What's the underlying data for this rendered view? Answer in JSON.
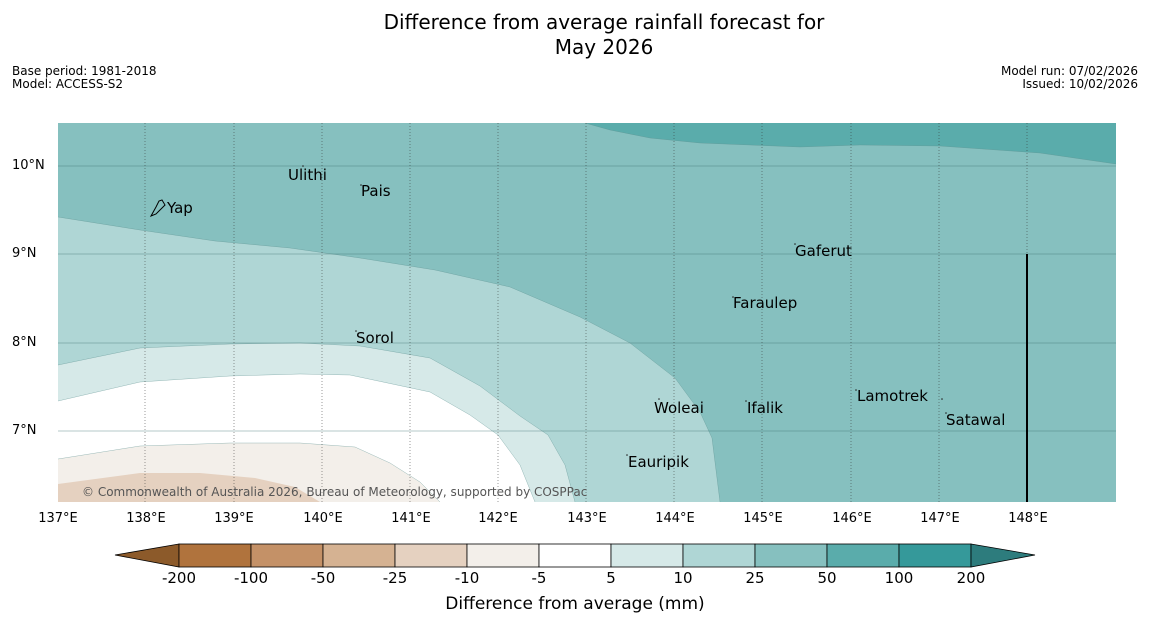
{
  "title_line1": "Difference from average rainfall forecast for",
  "title_line2": "May 2026",
  "meta_left": {
    "base_period": "Base period: 1981-2018",
    "model": "Model: ACCESS-S2"
  },
  "meta_right": {
    "model_run": "Model run: 07/02/2026",
    "issued": "Issued: 10/02/2026"
  },
  "lat_labels": [
    "10°N",
    "9°N",
    "8°N",
    "7°N"
  ],
  "lon_labels": [
    "137°E",
    "138°E",
    "139°E",
    "140°E",
    "141°E",
    "142°E",
    "143°E",
    "144°E",
    "145°E",
    "146°E",
    "147°E",
    "148°E"
  ],
  "places": {
    "ulithi": "Ulithi",
    "pais": "Pais",
    "yap": "Yap",
    "gaferut": "Gaferut",
    "faraulep": "Faraulep",
    "sorol": "Sorol",
    "lamotrek": "Lamotrek",
    "woleai": "Woleai",
    "ifalik": "Ifalik",
    "satawal": "Satawal",
    "eauripik": "Eauripik"
  },
  "copyright": "© Commonwealth of Australia 2026, Bureau of Meteorology, supported by COSPPac",
  "colorbar": {
    "labels": [
      "-200",
      "-100",
      "-50",
      "-25",
      "-10",
      "-5",
      "5",
      "10",
      "25",
      "50",
      "100",
      "200"
    ],
    "colors": [
      "#8c5a2a",
      "#b0733d",
      "#c49167",
      "#d5b292",
      "#e5d1c0",
      "#f3efea",
      "#ffffff",
      "#d6e9e8",
      "#afd6d5",
      "#86c0bf",
      "#5aacab",
      "#35999a",
      "#2d7c7d"
    ],
    "title": "Difference from average (mm)"
  }
}
